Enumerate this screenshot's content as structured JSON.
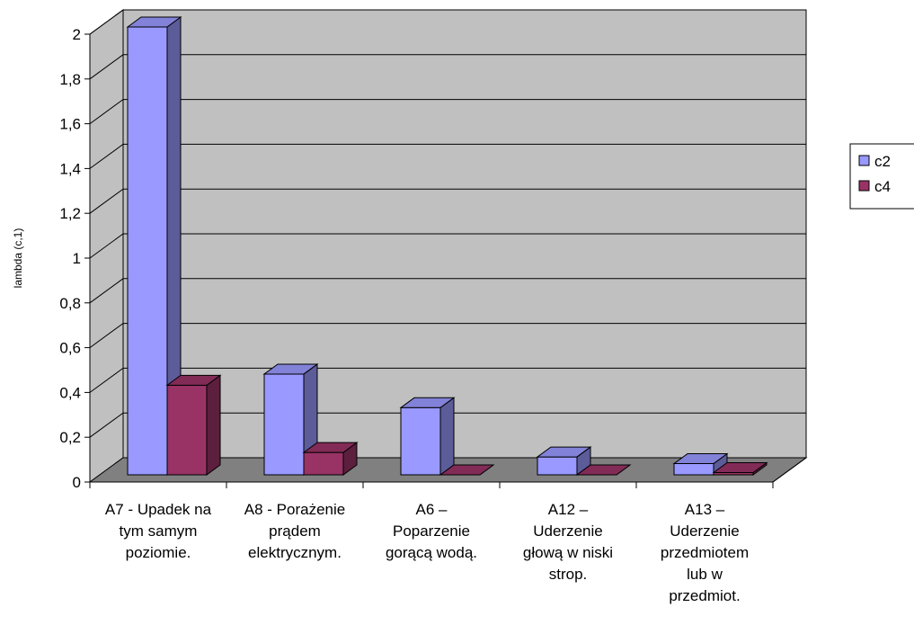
{
  "chart_data": {
    "type": "bar3d",
    "y_label": "lambda (c,1)",
    "categories": [
      "A7 - Upadek na tym samym poziomie.",
      "A8 - Porażenie prądem elektrycznym.",
      "A6 – Poparzenie gorącą wodą.",
      "A12 – Uderzenie głową w niski strop.",
      "A13 – Uderzenie przedmiotem lub w przedmiot."
    ],
    "series": [
      {
        "name": "c2",
        "color": "#9999ff",
        "values": [
          2.0,
          0.45,
          0.3,
          0.08,
          0.05
        ]
      },
      {
        "name": "c4",
        "color": "#993366",
        "values": [
          0.4,
          0.1,
          0.0,
          0.0,
          0.01
        ]
      }
    ],
    "ylim": [
      0,
      2
    ],
    "yticks": [
      0,
      {
        "value": 0.2,
        "label": "0,2"
      },
      {
        "value": 0.4,
        "label": "0,4"
      },
      {
        "value": 0.6,
        "label": "0,6"
      },
      {
        "value": 0.8,
        "label": "0,8"
      },
      1,
      {
        "value": 1.2,
        "label": "1,2"
      },
      {
        "value": 1.4,
        "label": "1,4"
      },
      {
        "value": 1.6,
        "label": "1,6"
      },
      {
        "value": 1.8,
        "label": "1,8"
      },
      2
    ],
    "grid": true,
    "legend": "right"
  }
}
